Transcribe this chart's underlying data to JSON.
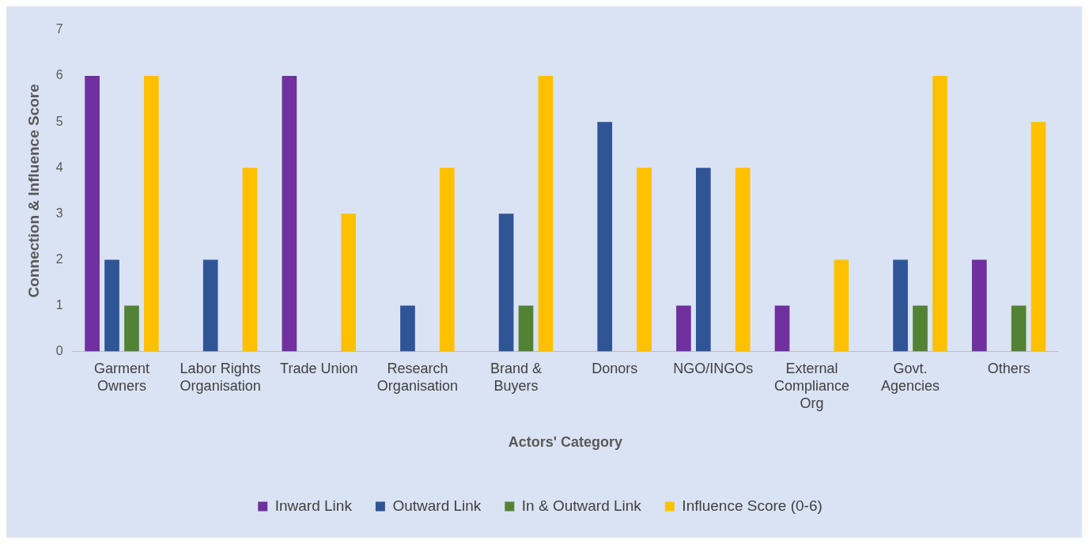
{
  "chart_data": {
    "type": "bar",
    "xlabel": "Actors' Category",
    "ylabel": "Connection & Influence Score",
    "categories": [
      "Garment Owners",
      "Labor Rights Organisation",
      "Trade Union",
      "Research Organisation",
      "Brand & Buyers",
      "Donors",
      "NGO/INGOs",
      "External Compliance Org",
      "Govt. Agencies",
      "Others"
    ],
    "series": [
      {
        "name": "Inward Link",
        "color": "#7030a0",
        "values": [
          6,
          0,
          6,
          0,
          0,
          0,
          1,
          1,
          0,
          2
        ]
      },
      {
        "name": "Outward Link",
        "color": "#2f5597",
        "values": [
          2,
          2,
          0,
          1,
          3,
          5,
          4,
          0,
          2,
          0
        ]
      },
      {
        "name": "In & Outward Link",
        "color": "#548235",
        "values": [
          1,
          0,
          0,
          0,
          1,
          0,
          0,
          0,
          1,
          1
        ]
      },
      {
        "name": "Influence Score (0-6)",
        "color": "#ffc000",
        "values": [
          6,
          4,
          3,
          4,
          6,
          4,
          4,
          2,
          6,
          5
        ]
      }
    ],
    "ylim": [
      0,
      7
    ],
    "yticks": [
      0,
      1,
      2,
      3,
      4,
      5,
      6,
      7
    ],
    "grid": false,
    "legend": "bottom"
  }
}
